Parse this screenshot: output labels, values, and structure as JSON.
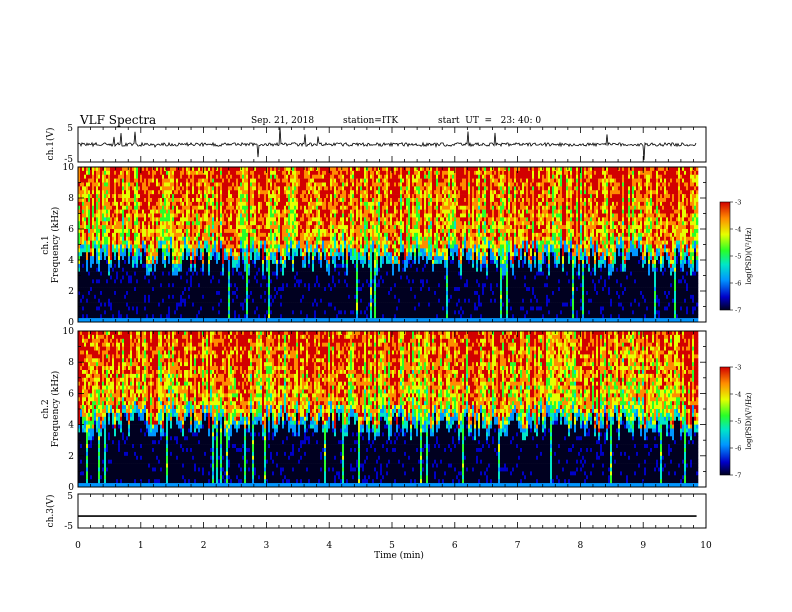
{
  "header": {
    "title": "VLF Spectra",
    "date": "Sep. 21, 2018",
    "station": "station=ITK",
    "start": "start  UT  =   23: 40: 0"
  },
  "chart_data": [
    {
      "type": "line",
      "name": "ch1-waveform",
      "ylabel": "ch.1(V)",
      "ylim": [
        -5,
        5
      ],
      "yticks": [
        "5",
        "-5"
      ],
      "xlim": [
        0,
        10
      ],
      "baseline_value": 0,
      "noise_amplitude": 0.5,
      "spike_range": [
        -5,
        5
      ],
      "data_end_min": 9.85
    },
    {
      "type": "heatmap",
      "name": "ch1-spectrogram",
      "channel_label": "ch.1",
      "ylabel": "Frequency  (kHz)",
      "xlim": [
        0,
        10
      ],
      "ylim": [
        0,
        10
      ],
      "yticks": [
        "0",
        "2",
        "4",
        "6",
        "8",
        "10"
      ],
      "data_end_min": 9.85,
      "colorbar": {
        "label": "log(PSD)(V²/Hz)",
        "range": [
          -7,
          -3
        ],
        "ticks": [
          "-3",
          "-4",
          "-5",
          "-6",
          "-7"
        ]
      }
    },
    {
      "type": "heatmap",
      "name": "ch2-spectrogram",
      "channel_label": "ch.2",
      "ylabel": "Frequency  (kHz)",
      "xlim": [
        0,
        10
      ],
      "ylim": [
        0,
        10
      ],
      "yticks": [
        "0",
        "2",
        "4",
        "6",
        "8",
        "10"
      ],
      "data_end_min": 9.85,
      "colorbar": {
        "label": "log(PSD)(V²/Hz)",
        "range": [
          -7,
          -3
        ],
        "ticks": [
          "-3",
          "-4",
          "-5",
          "-6",
          "-7"
        ]
      }
    },
    {
      "type": "line",
      "name": "ch3-waveform",
      "ylabel": "ch.3(V)",
      "ylim": [
        -5,
        5
      ],
      "yticks": [
        "5",
        "-5"
      ],
      "xlim": [
        0,
        10
      ],
      "baseline_value": -1.5,
      "data_end_min": 9.85,
      "xlabel": "Time  (min)",
      "xticks": [
        "0",
        "1",
        "2",
        "3",
        "4",
        "5",
        "6",
        "7",
        "8",
        "9",
        "10"
      ]
    }
  ],
  "colors": {
    "spectrogram_scale": [
      "#000020",
      "#0000c8",
      "#0096ff",
      "#00e6c8",
      "#28ff28",
      "#e6ff00",
      "#ff8c00",
      "#d20000"
    ]
  }
}
